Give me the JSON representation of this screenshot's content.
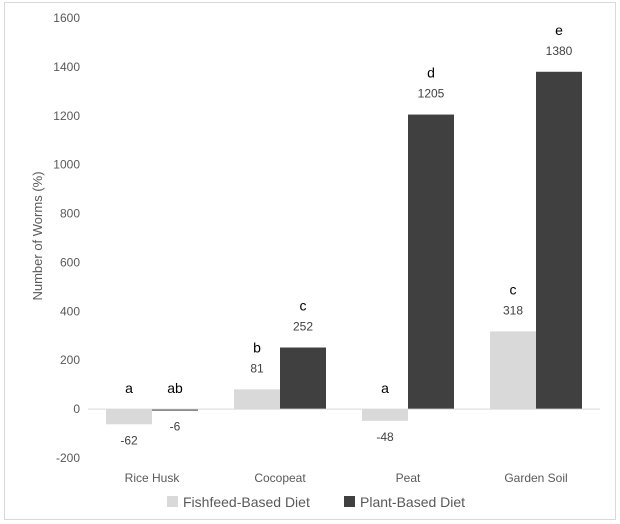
{
  "chart_data": {
    "type": "bar",
    "title": "",
    "xlabel": "",
    "ylabel": "Number of Worms (%)",
    "ylim": [
      -200,
      1600
    ],
    "yticks": [
      -200,
      0,
      200,
      400,
      600,
      800,
      1000,
      1200,
      1400,
      1600
    ],
    "grid": false,
    "legend_position": "bottom",
    "categories": [
      "Rice Husk",
      "Cocopeat",
      "Peat",
      "Garden Soil"
    ],
    "series": [
      {
        "name": "Fishfeed-Based Diet",
        "color": "#d9d9d9",
        "values": [
          -62,
          81,
          -48,
          318
        ],
        "value_labels": [
          "-62",
          "81",
          "-48",
          "318"
        ],
        "significance": [
          "a",
          "b",
          "a",
          "c"
        ]
      },
      {
        "name": "Plant-Based Diet",
        "color": "#404040",
        "values": [
          -6,
          252,
          1205,
          1380
        ],
        "value_labels": [
          "-6",
          "252",
          "1205",
          "1380"
        ],
        "significance": [
          "ab",
          "c",
          "d",
          "e"
        ]
      }
    ]
  }
}
